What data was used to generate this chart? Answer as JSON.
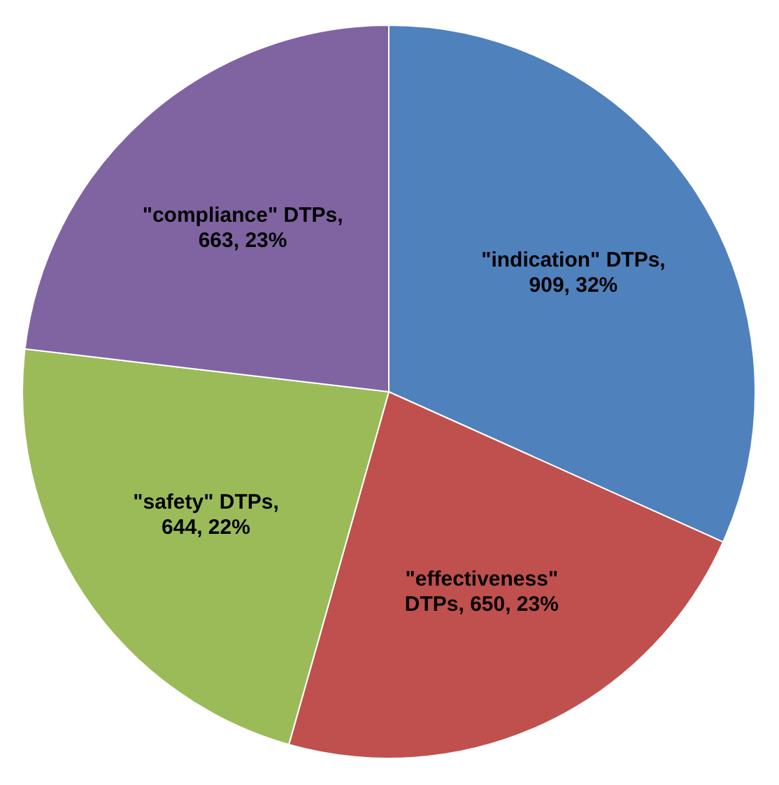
{
  "chart_data": {
    "type": "pie",
    "categories": [
      "\"indication\" DTPs",
      "\"effectiveness\" DTPs",
      "\"safety\" DTPs",
      "\"compliance\" DTPs"
    ],
    "values": [
      909,
      650,
      644,
      663
    ],
    "colors": [
      "#4f81bd",
      "#c0504d",
      "#9bbb59",
      "#8064a2"
    ],
    "value_labels": [
      ", 909, 32%",
      ", 650, 23%",
      ", 644, 22%",
      ", 663, 23%"
    ]
  }
}
